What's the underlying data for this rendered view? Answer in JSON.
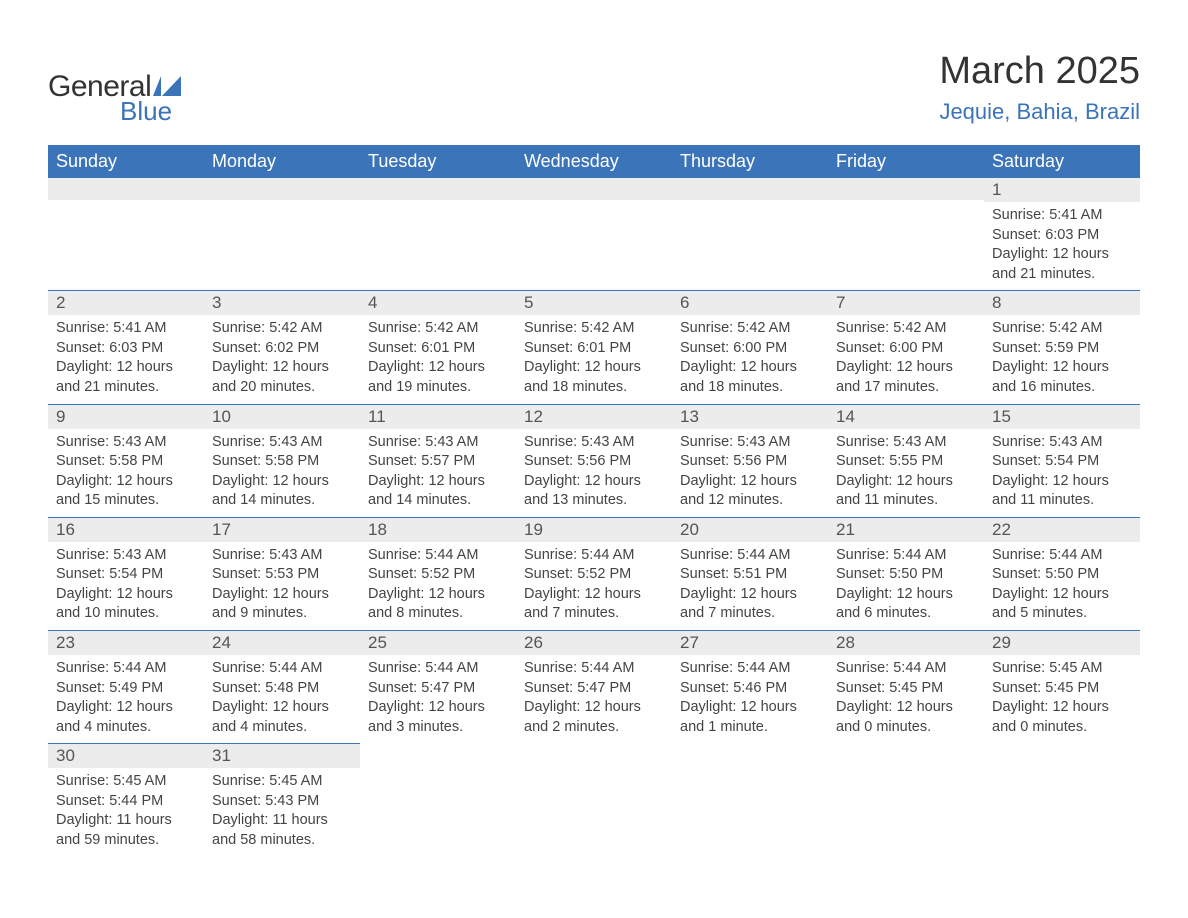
{
  "logo": {
    "word1": "General",
    "word2": "Blue"
  },
  "title": "March 2025",
  "location": "Jequie, Bahia, Brazil",
  "colors": {
    "brand_blue": "#3b74b9",
    "header_text": "#ffffff",
    "strip_bg": "#ececec",
    "body_text": "#444444",
    "page_bg": "#ffffff"
  },
  "columns": [
    "Sunday",
    "Monday",
    "Tuesday",
    "Wednesday",
    "Thursday",
    "Friday",
    "Saturday"
  ],
  "weeks": [
    [
      null,
      null,
      null,
      null,
      null,
      null,
      {
        "n": "1",
        "sunrise": "Sunrise: 5:41 AM",
        "sunset": "Sunset: 6:03 PM",
        "d1": "Daylight: 12 hours",
        "d2": "and 21 minutes."
      }
    ],
    [
      {
        "n": "2",
        "sunrise": "Sunrise: 5:41 AM",
        "sunset": "Sunset: 6:03 PM",
        "d1": "Daylight: 12 hours",
        "d2": "and 21 minutes."
      },
      {
        "n": "3",
        "sunrise": "Sunrise: 5:42 AM",
        "sunset": "Sunset: 6:02 PM",
        "d1": "Daylight: 12 hours",
        "d2": "and 20 minutes."
      },
      {
        "n": "4",
        "sunrise": "Sunrise: 5:42 AM",
        "sunset": "Sunset: 6:01 PM",
        "d1": "Daylight: 12 hours",
        "d2": "and 19 minutes."
      },
      {
        "n": "5",
        "sunrise": "Sunrise: 5:42 AM",
        "sunset": "Sunset: 6:01 PM",
        "d1": "Daylight: 12 hours",
        "d2": "and 18 minutes."
      },
      {
        "n": "6",
        "sunrise": "Sunrise: 5:42 AM",
        "sunset": "Sunset: 6:00 PM",
        "d1": "Daylight: 12 hours",
        "d2": "and 18 minutes."
      },
      {
        "n": "7",
        "sunrise": "Sunrise: 5:42 AM",
        "sunset": "Sunset: 6:00 PM",
        "d1": "Daylight: 12 hours",
        "d2": "and 17 minutes."
      },
      {
        "n": "8",
        "sunrise": "Sunrise: 5:42 AM",
        "sunset": "Sunset: 5:59 PM",
        "d1": "Daylight: 12 hours",
        "d2": "and 16 minutes."
      }
    ],
    [
      {
        "n": "9",
        "sunrise": "Sunrise: 5:43 AM",
        "sunset": "Sunset: 5:58 PM",
        "d1": "Daylight: 12 hours",
        "d2": "and 15 minutes."
      },
      {
        "n": "10",
        "sunrise": "Sunrise: 5:43 AM",
        "sunset": "Sunset: 5:58 PM",
        "d1": "Daylight: 12 hours",
        "d2": "and 14 minutes."
      },
      {
        "n": "11",
        "sunrise": "Sunrise: 5:43 AM",
        "sunset": "Sunset: 5:57 PM",
        "d1": "Daylight: 12 hours",
        "d2": "and 14 minutes."
      },
      {
        "n": "12",
        "sunrise": "Sunrise: 5:43 AM",
        "sunset": "Sunset: 5:56 PM",
        "d1": "Daylight: 12 hours",
        "d2": "and 13 minutes."
      },
      {
        "n": "13",
        "sunrise": "Sunrise: 5:43 AM",
        "sunset": "Sunset: 5:56 PM",
        "d1": "Daylight: 12 hours",
        "d2": "and 12 minutes."
      },
      {
        "n": "14",
        "sunrise": "Sunrise: 5:43 AM",
        "sunset": "Sunset: 5:55 PM",
        "d1": "Daylight: 12 hours",
        "d2": "and 11 minutes."
      },
      {
        "n": "15",
        "sunrise": "Sunrise: 5:43 AM",
        "sunset": "Sunset: 5:54 PM",
        "d1": "Daylight: 12 hours",
        "d2": "and 11 minutes."
      }
    ],
    [
      {
        "n": "16",
        "sunrise": "Sunrise: 5:43 AM",
        "sunset": "Sunset: 5:54 PM",
        "d1": "Daylight: 12 hours",
        "d2": "and 10 minutes."
      },
      {
        "n": "17",
        "sunrise": "Sunrise: 5:43 AM",
        "sunset": "Sunset: 5:53 PM",
        "d1": "Daylight: 12 hours",
        "d2": "and 9 minutes."
      },
      {
        "n": "18",
        "sunrise": "Sunrise: 5:44 AM",
        "sunset": "Sunset: 5:52 PM",
        "d1": "Daylight: 12 hours",
        "d2": "and 8 minutes."
      },
      {
        "n": "19",
        "sunrise": "Sunrise: 5:44 AM",
        "sunset": "Sunset: 5:52 PM",
        "d1": "Daylight: 12 hours",
        "d2": "and 7 minutes."
      },
      {
        "n": "20",
        "sunrise": "Sunrise: 5:44 AM",
        "sunset": "Sunset: 5:51 PM",
        "d1": "Daylight: 12 hours",
        "d2": "and 7 minutes."
      },
      {
        "n": "21",
        "sunrise": "Sunrise: 5:44 AM",
        "sunset": "Sunset: 5:50 PM",
        "d1": "Daylight: 12 hours",
        "d2": "and 6 minutes."
      },
      {
        "n": "22",
        "sunrise": "Sunrise: 5:44 AM",
        "sunset": "Sunset: 5:50 PM",
        "d1": "Daylight: 12 hours",
        "d2": "and 5 minutes."
      }
    ],
    [
      {
        "n": "23",
        "sunrise": "Sunrise: 5:44 AM",
        "sunset": "Sunset: 5:49 PM",
        "d1": "Daylight: 12 hours",
        "d2": "and 4 minutes."
      },
      {
        "n": "24",
        "sunrise": "Sunrise: 5:44 AM",
        "sunset": "Sunset: 5:48 PM",
        "d1": "Daylight: 12 hours",
        "d2": "and 4 minutes."
      },
      {
        "n": "25",
        "sunrise": "Sunrise: 5:44 AM",
        "sunset": "Sunset: 5:47 PM",
        "d1": "Daylight: 12 hours",
        "d2": "and 3 minutes."
      },
      {
        "n": "26",
        "sunrise": "Sunrise: 5:44 AM",
        "sunset": "Sunset: 5:47 PM",
        "d1": "Daylight: 12 hours",
        "d2": "and 2 minutes."
      },
      {
        "n": "27",
        "sunrise": "Sunrise: 5:44 AM",
        "sunset": "Sunset: 5:46 PM",
        "d1": "Daylight: 12 hours",
        "d2": "and 1 minute."
      },
      {
        "n": "28",
        "sunrise": "Sunrise: 5:44 AM",
        "sunset": "Sunset: 5:45 PM",
        "d1": "Daylight: 12 hours",
        "d2": "and 0 minutes."
      },
      {
        "n": "29",
        "sunrise": "Sunrise: 5:45 AM",
        "sunset": "Sunset: 5:45 PM",
        "d1": "Daylight: 12 hours",
        "d2": "and 0 minutes."
      }
    ],
    [
      {
        "n": "30",
        "sunrise": "Sunrise: 5:45 AM",
        "sunset": "Sunset: 5:44 PM",
        "d1": "Daylight: 11 hours",
        "d2": "and 59 minutes."
      },
      {
        "n": "31",
        "sunrise": "Sunrise: 5:45 AM",
        "sunset": "Sunset: 5:43 PM",
        "d1": "Daylight: 11 hours",
        "d2": "and 58 minutes."
      },
      null,
      null,
      null,
      null,
      null
    ]
  ]
}
